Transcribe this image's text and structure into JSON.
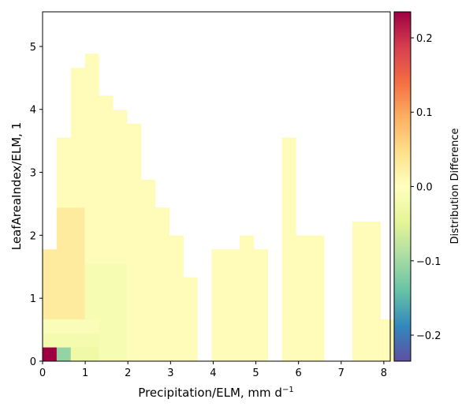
{
  "chart_data": {
    "type": "heatmap",
    "xlabel_main": "Precipitation/ELM,  mm d",
    "xlabel_sup": "−1",
    "ylabel": "LeafAreaIndex/ELM,  1",
    "colorbar_label": "Distribution Difference",
    "colormap": "Spectral_r",
    "x_range": [
      0,
      8.15
    ],
    "y_range": [
      0,
      5.55
    ],
    "cell_width": 0.33,
    "cell_height": 0.222,
    "x_ticks": [
      "0",
      "1",
      "2",
      "3",
      "4",
      "5",
      "6",
      "7",
      "8"
    ],
    "y_ticks": [
      "0",
      "1",
      "2",
      "3",
      "4",
      "5"
    ],
    "colorbar_range": [
      -0.235,
      0.235
    ],
    "colorbar_ticks": [
      "−0.2",
      "−0.1",
      "0.0",
      "0.1",
      "0.2"
    ],
    "colorbar_tick_values": [
      -0.2,
      -0.1,
      0.0,
      0.1,
      0.2
    ],
    "cells": [
      [
        0,
        0,
        0.235
      ],
      [
        1,
        0,
        -0.11
      ],
      [
        2,
        0,
        -0.015
      ],
      [
        3,
        0,
        -0.01
      ],
      [
        4,
        0,
        -0.005
      ],
      [
        5,
        0,
        0.0
      ],
      [
        6,
        0,
        0.0
      ],
      [
        7,
        0,
        0.0
      ],
      [
        8,
        0,
        0.0
      ],
      [
        9,
        0,
        0.0
      ],
      [
        10,
        0,
        0.0
      ],
      [
        11,
        0,
        0.0
      ],
      [
        12,
        0,
        0.0
      ],
      [
        13,
        0,
        0.0
      ],
      [
        16,
        0,
        0.0
      ],
      [
        17,
        0,
        0.0
      ],
      [
        18,
        0,
        0.0
      ],
      [
        22,
        0,
        0.0
      ],
      [
        23,
        0,
        0.0
      ],
      [
        24,
        0,
        0.0
      ],
      [
        25,
        0,
        0.0
      ],
      [
        26,
        0,
        0.0
      ],
      [
        27,
        0,
        0.0
      ],
      [
        28,
        0,
        0.0
      ],
      [
        29,
        0,
        0.0
      ],
      [
        30,
        0,
        0.0
      ],
      [
        31,
        0,
        0.0
      ],
      [
        32,
        0,
        0.0
      ],
      [
        33,
        0,
        0.0
      ],
      [
        34,
        0,
        0.0
      ],
      [
        35,
        0,
        0.0
      ],
      [
        36,
        0,
        0.0
      ],
      [
        37,
        0,
        0.0
      ],
      [
        38,
        0,
        0.0
      ],
      [
        39,
        0,
        0.0
      ],
      [
        40,
        0,
        0.0
      ],
      [
        41,
        0,
        0.0
      ],
      [
        42,
        0,
        0.0
      ],
      [
        43,
        0,
        0.0
      ],
      [
        44,
        0,
        0.0
      ],
      [
        45,
        0,
        0.0
      ],
      [
        46,
        0,
        0.0
      ],
      [
        47,
        0,
        0.0
      ],
      [
        48,
        0,
        0.0
      ],
      [
        49,
        0,
        0.0
      ],
      [
        50,
        0,
        0.0
      ],
      [
        51,
        0,
        0.0
      ],
      [
        52,
        0,
        0.0
      ],
      [
        53,
        0,
        0.0
      ],
      [
        54,
        0,
        0.0
      ],
      [
        55,
        0,
        0.0
      ],
      [
        56,
        0,
        0.0
      ],
      [
        57,
        0,
        0.0
      ],
      [
        58,
        0,
        0.0
      ],
      [
        59,
        0,
        0.0
      ],
      [
        60,
        0,
        0.0
      ],
      [
        61,
        0,
        0.0
      ],
      [
        62,
        0,
        0.0
      ],
      [
        63,
        0,
        0.0
      ],
      [
        64,
        0,
        0.0
      ],
      [
        65,
        0,
        0.0
      ],
      [
        66,
        0,
        0.0
      ],
      [
        67,
        0,
        0.0
      ],
      [
        68,
        0,
        0.0
      ],
      [
        69,
        0,
        0.0
      ],
      [
        70,
        0,
        0.0
      ],
      [
        71,
        0,
        0.0
      ],
      [
        72,
        0,
        0.0
      ],
      [
        73,
        0,
        0.0
      ],
      [
        74,
        0,
        0.0
      ],
      [
        75,
        0,
        0.0
      ],
      [
        76,
        0,
        0.0
      ],
      [
        77,
        0,
        0.0
      ],
      [
        78,
        0,
        0.0
      ],
      [
        79,
        0,
        0.0
      ],
      [
        80,
        0,
        0.0
      ],
      [
        81,
        0,
        0.0
      ],
      [
        82,
        0,
        0.0
      ],
      [
        83,
        0,
        0.0
      ],
      [
        84,
        0,
        0.0
      ],
      [
        85,
        0,
        0.0
      ],
      [
        86,
        0,
        0.0
      ],
      [
        87,
        0,
        0.0
      ],
      [
        88,
        0,
        0.0
      ],
      [
        89,
        0,
        0.0
      ],
      [
        90,
        0,
        0.0
      ],
      [
        91,
        0,
        0.0
      ],
      [
        92,
        0,
        0.0
      ],
      [
        93,
        0,
        0.0
      ],
      [
        94,
        0,
        0.0
      ],
      [
        95,
        0,
        0.0
      ],
      [
        96,
        0,
        0.0
      ],
      [
        97,
        0,
        0.0
      ],
      [
        98,
        0,
        0.0
      ],
      [
        99,
        0,
        0.0
      ],
      [
        100,
        0,
        0.0
      ],
      [
        101,
        0,
        0.0
      ],
      [
        102,
        0,
        0.0
      ],
      [
        103,
        0,
        0.0
      ],
      [
        104,
        0,
        0.0
      ],
      [
        105,
        0,
        0.0
      ],
      [
        106,
        0,
        0.0
      ],
      [
        107,
        0,
        0.0
      ],
      [
        108,
        0,
        0.0
      ],
      [
        109,
        0,
        0.0
      ],
      [
        110,
        0,
        0.0
      ],
      [
        111,
        0,
        0.0
      ],
      [
        112,
        0,
        0.0
      ],
      [
        113,
        0,
        0.0
      ],
      [
        114,
        0,
        0.0
      ],
      [
        115,
        0,
        0.0
      ],
      [
        116,
        0,
        0.0
      ],
      [
        117,
        0,
        0.0
      ],
      [
        118,
        0,
        0.0
      ],
      [
        119,
        0,
        0.0
      ],
      [
        120,
        0,
        0.0
      ],
      [
        121,
        0,
        0.0
      ],
      [
        122,
        0,
        0.0
      ],
      [
        123,
        0,
        0.0
      ],
      [
        124,
        0,
        0.0
      ],
      [
        125,
        0,
        0.0
      ],
      [
        126,
        0,
        0.0
      ],
      [
        127,
        0,
        0.0
      ],
      [
        128,
        0,
        0.0
      ],
      [
        129,
        0,
        0.0
      ],
      [
        130,
        0,
        0.0
      ],
      [
        131,
        0,
        0.0
      ],
      [
        132,
        0,
        0.0
      ],
      [
        133,
        0,
        0.0
      ],
      [
        134,
        0,
        0.0
      ],
      [
        135,
        0,
        0.0
      ],
      [
        136,
        0,
        0.0
      ],
      [
        137,
        0,
        0.0
      ],
      [
        138,
        0,
        0.0
      ],
      [
        139,
        0,
        0.0
      ],
      [
        140,
        0,
        0.0
      ],
      [
        141,
        0,
        0.0
      ],
      [
        142,
        0,
        0.0
      ],
      [
        143,
        0,
        0.0
      ],
      [
        144,
        0,
        0.0
      ],
      [
        145,
        0,
        0.0
      ],
      [
        146,
        0,
        0.0
      ],
      [
        147,
        0,
        0.0
      ],
      [
        148,
        0,
        0.0
      ],
      [
        149,
        0,
        0.0
      ],
      [
        150,
        0,
        0.0
      ],
      [
        151,
        0,
        0.0
      ],
      [
        152,
        0,
        0.0
      ],
      [
        153,
        0,
        0.0
      ],
      [
        154,
        0,
        0.0
      ],
      [
        155,
        0,
        0.0
      ],
      [
        156,
        0,
        0.0
      ],
      [
        157,
        0,
        0.0
      ],
      [
        158,
        0,
        0.0
      ],
      [
        159,
        0,
        0.0
      ],
      [
        160,
        0,
        0.0
      ],
      [
        161,
        0,
        0.0
      ],
      [
        162,
        0,
        0.0
      ],
      [
        163,
        0,
        0.0
      ],
      [
        164,
        0,
        0.0
      ],
      [
        165,
        0,
        0.0
      ],
      [
        166,
        0,
        0.0
      ],
      [
        167,
        0,
        0.0
      ],
      [
        168,
        0,
        0.0
      ],
      [
        169,
        0,
        0.0
      ],
      [
        170,
        0,
        0.0
      ],
      [
        171,
        0,
        0.0
      ],
      [
        172,
        0,
        0.0
      ],
      [
        173,
        0,
        0.0
      ],
      [
        174,
        0,
        0.0
      ],
      [
        175,
        0,
        0.0
      ],
      [
        176,
        0,
        0.0
      ],
      [
        177,
        0,
        0.0
      ],
      [
        178,
        0,
        0.0
      ],
      [
        179,
        0,
        0.0
      ],
      [
        180,
        0,
        0.0
      ],
      [
        181,
        0,
        0.0
      ],
      [
        182,
        0,
        0.0
      ],
      [
        183,
        0,
        0.0
      ],
      [
        184,
        0,
        0.0
      ],
      [
        185,
        0,
        0.0
      ],
      [
        186,
        0,
        0.0
      ],
      [
        187,
        0,
        0.0
      ],
      [
        188,
        0,
        0.0
      ],
      [
        189,
        0,
        0.0
      ],
      [
        190,
        0,
        0.0
      ],
      [
        191,
        0,
        0.0
      ],
      [
        192,
        0,
        0.0
      ],
      [
        193,
        0,
        0.0
      ],
      [
        194,
        0,
        0.0
      ],
      [
        195,
        0,
        0.0
      ],
      [
        196,
        0,
        0.0
      ],
      [
        197,
        0,
        0.0
      ],
      [
        198,
        0,
        0.0
      ],
      [
        199,
        0,
        0.0
      ],
      [
        200,
        0,
        0.0
      ],
      [
        201,
        0,
        0.0
      ],
      [
        202,
        0,
        0.0
      ],
      [
        203,
        0,
        0.0
      ],
      [
        204,
        0,
        0.0
      ],
      [
        205,
        0,
        0.0
      ],
      [
        206,
        0,
        0.0
      ],
      [
        207,
        0,
        0.0
      ],
      [
        208,
        0,
        0.0
      ],
      [
        209,
        0,
        0.0
      ],
      [
        210,
        0,
        0.0
      ],
      [
        211,
        0,
        0.0
      ],
      [
        212,
        0,
        0.0
      ],
      [
        213,
        0,
        0.0
      ],
      [
        214,
        0,
        0.0
      ],
      [
        215,
        0,
        0.0
      ],
      [
        216,
        0,
        0.0
      ],
      [
        217,
        0,
        0.0
      ],
      [
        218,
        0,
        0.0
      ],
      [
        219,
        0,
        0.0
      ],
      [
        220,
        0,
        0.0
      ],
      [
        221,
        0,
        0.0
      ],
      [
        222,
        0,
        0.0
      ],
      [
        223,
        0,
        0.0
      ],
      [
        224,
        0,
        0.0
      ],
      [
        225,
        0,
        0.0
      ],
      [
        226,
        0,
        0.0
      ],
      [
        227,
        0,
        0.0
      ],
      [
        228,
        0,
        0.0
      ],
      [
        229,
        0,
        0.0
      ],
      [
        230,
        0,
        0.0
      ],
      [
        231,
        0,
        0.0
      ],
      [
        232,
        0,
        0.0
      ],
      [
        233,
        0,
        0.0
      ],
      [
        234,
        0,
        0.0
      ],
      [
        235,
        0,
        0.0
      ],
      [
        236,
        0,
        0.0
      ],
      [
        237,
        0,
        0.0
      ],
      [
        238,
        0,
        0.0
      ],
      [
        239,
        0,
        0.0
      ],
      [
        240,
        0,
        0.0
      ],
      [
        241,
        0,
        0.0
      ],
      [
        242,
        0,
        0.0
      ],
      [
        243,
        0,
        0.0
      ],
      [
        244,
        0,
        0.0
      ],
      [
        245,
        0,
        0.0
      ],
      [
        246,
        0,
        0.0
      ],
      [
        247,
        0,
        0.0
      ],
      [
        248,
        0,
        0.0
      ],
      [
        249,
        0,
        0.0
      ],
      [
        250,
        0,
        0.0
      ]
    ]
  }
}
